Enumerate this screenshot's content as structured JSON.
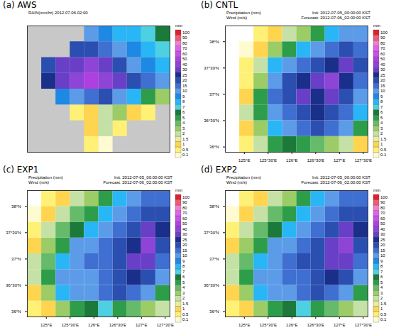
{
  "chart_data": {
    "type": "heatmap",
    "xlim": [
      124.6,
      127.6
    ],
    "ylim": [
      35.9,
      38.3
    ],
    "xticks": [
      {
        "value": 125,
        "label": "125°E"
      },
      {
        "value": 125.5,
        "label": "125°30'E"
      },
      {
        "value": 126,
        "label": "126°E"
      },
      {
        "value": 126.5,
        "label": "126°30'E"
      },
      {
        "value": 127,
        "label": "127°E"
      },
      {
        "value": 127.5,
        "label": "127°30'E"
      }
    ],
    "yticks": [
      {
        "value": 36,
        "label": "36°N"
      },
      {
        "value": 36.5,
        "label": "36°30'N"
      },
      {
        "value": 37,
        "label": "37°N"
      },
      {
        "value": 37.5,
        "label": "37°30'N"
      },
      {
        "value": 38,
        "label": "38°N"
      }
    ],
    "lon_edges": [
      124.6,
      124.9,
      125.2,
      125.5,
      125.8,
      126.1,
      126.4,
      126.7,
      127.0,
      127.3,
      127.6
    ],
    "lat_edges": [
      35.9,
      36.2,
      36.5,
      36.8,
      37.1,
      37.4,
      37.7,
      38.0,
      38.3
    ],
    "colorbar": {
      "label": "mm",
      "levels": [
        0.1,
        0.5,
        1,
        1.5,
        2,
        3,
        4,
        5,
        6,
        7,
        8,
        9,
        10,
        15,
        20,
        25,
        30,
        40,
        50,
        60,
        70,
        80,
        90,
        100
      ],
      "colors": [
        "#fffbd0",
        "#fff176",
        "#ffd54f",
        "#e6ee9c",
        "#c5e1a5",
        "#9ccc65",
        "#66bb6a",
        "#2e9d4a",
        "#1b7a3a",
        "#4dd0e1",
        "#29b6f6",
        "#1e88e5",
        "#5c9be8",
        "#3f6fd1",
        "#2a4fb0",
        "#1a2f8a",
        "#6a3fc8",
        "#8e44d6",
        "#b03fe0",
        "#c850e8",
        "#e060f0",
        "#f080c8",
        "#f05a78",
        "#e0202a"
      ]
    },
    "panels": [
      {
        "title": "(a) AWS",
        "tick_labels": false,
        "header_left": [
          "RAIN(mm/hr) 2012.07.06.02:00"
        ],
        "values": [
          [
            null,
            null,
            null,
            null,
            0.5,
            0.1,
            null,
            null,
            null,
            null
          ],
          [
            null,
            null,
            null,
            null,
            1,
            2,
            0.5,
            null,
            null,
            null
          ],
          [
            null,
            null,
            null,
            0.5,
            1,
            2,
            3,
            1,
            0.5,
            null
          ],
          [
            null,
            null,
            9,
            10,
            15,
            20,
            10,
            8,
            5,
            3
          ],
          [
            null,
            25,
            30,
            40,
            50,
            40,
            30,
            20,
            15,
            10
          ],
          [
            null,
            20,
            30,
            30,
            40,
            30,
            20,
            10,
            9,
            8
          ],
          [
            null,
            null,
            null,
            20,
            20,
            15,
            10,
            9,
            8,
            7
          ],
          [
            null,
            null,
            null,
            null,
            10,
            9,
            8,
            8,
            7,
            6
          ]
        ]
      },
      {
        "title": "(b) CNTL",
        "header_left": [
          "Precipitation (mm)",
          "Wind (m/s)"
        ],
        "header_right": [
          "Init: 2012-07-05_00:00:00 KST",
          "Forecast: 2012-07-06_02:00:00 KST"
        ],
        "values": [
          [
            null,
            0.5,
            2,
            5,
            6,
            5,
            4,
            3,
            2,
            1
          ],
          [
            null,
            1,
            3,
            8,
            10,
            15,
            20,
            15,
            10,
            5
          ],
          [
            null,
            2,
            5,
            10,
            15,
            20,
            25,
            20,
            15,
            8
          ],
          [
            null,
            1,
            5,
            15,
            20,
            30,
            25,
            30,
            20,
            10
          ],
          [
            null,
            0.5,
            3,
            10,
            20,
            25,
            30,
            40,
            25,
            15
          ],
          [
            null,
            0.5,
            2,
            8,
            10,
            15,
            20,
            25,
            30,
            20
          ],
          [
            null,
            0.1,
            1,
            3,
            5,
            8,
            10,
            15,
            20,
            15
          ],
          [
            null,
            null,
            0.5,
            1,
            2,
            3,
            5,
            8,
            10,
            10
          ]
        ]
      },
      {
        "title": "(c) EXP1",
        "header_left": [
          "Precipitation (mm)",
          "Wind (m/s)"
        ],
        "header_right": [
          "Init: 2012-07-05_00:00:00 KST",
          "Forecast: 2012-07-06_02:00:00 KST"
        ],
        "values": [
          [
            0.5,
            1,
            3,
            5,
            6,
            7,
            5,
            4,
            3,
            2
          ],
          [
            1,
            3,
            8,
            10,
            10,
            15,
            20,
            15,
            10,
            5
          ],
          [
            2,
            5,
            10,
            10,
            10,
            15,
            20,
            25,
            20,
            10
          ],
          [
            2,
            4,
            8,
            10,
            15,
            15,
            20,
            30,
            30,
            15
          ],
          [
            1,
            3,
            5,
            10,
            10,
            15,
            20,
            25,
            40,
            20
          ],
          [
            0.5,
            2,
            4,
            6,
            8,
            10,
            15,
            20,
            30,
            25
          ],
          [
            0.1,
            1,
            2,
            4,
            5,
            8,
            10,
            15,
            20,
            20
          ],
          [
            null,
            0.5,
            1,
            2,
            3,
            5,
            8,
            10,
            15,
            15
          ]
        ]
      },
      {
        "title": "(d) EXP2",
        "header_left": [
          "Precipitation (mm)",
          "Wind (m/s)"
        ],
        "header_right": [
          "Init: 2012-07-05_00:00:00 KST",
          "Forecast: 2012-07-06_02:00:00 KST"
        ],
        "values": [
          [
            0.5,
            1,
            3,
            5,
            6,
            7,
            5,
            4,
            3,
            2
          ],
          [
            1,
            3,
            8,
            10,
            10,
            15,
            20,
            15,
            10,
            5
          ],
          [
            2,
            5,
            10,
            10,
            15,
            15,
            20,
            25,
            20,
            10
          ],
          [
            2,
            4,
            8,
            10,
            15,
            20,
            20,
            30,
            30,
            15
          ],
          [
            1,
            3,
            5,
            10,
            10,
            15,
            20,
            30,
            40,
            20
          ],
          [
            0.5,
            2,
            4,
            6,
            8,
            10,
            15,
            20,
            30,
            25
          ],
          [
            0.1,
            1,
            2,
            4,
            5,
            8,
            10,
            15,
            20,
            20
          ],
          [
            null,
            0.5,
            1,
            2,
            3,
            5,
            8,
            10,
            15,
            15
          ]
        ]
      }
    ]
  }
}
